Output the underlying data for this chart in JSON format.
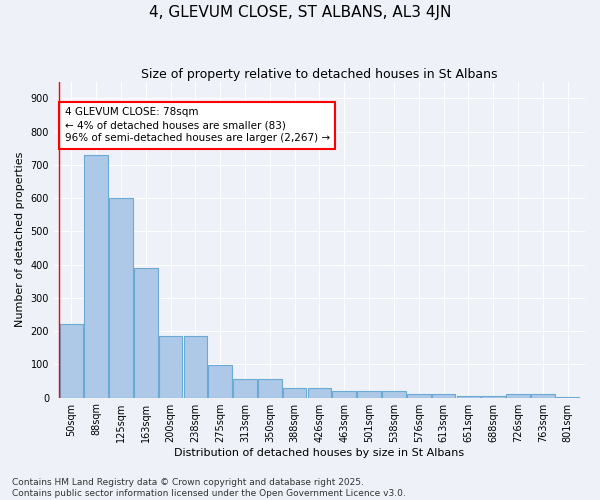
{
  "title": "4, GLEVUM CLOSE, ST ALBANS, AL3 4JN",
  "subtitle": "Size of property relative to detached houses in St Albans",
  "xlabel": "Distribution of detached houses by size in St Albans",
  "ylabel": "Number of detached properties",
  "categories": [
    "50sqm",
    "88sqm",
    "125sqm",
    "163sqm",
    "200sqm",
    "238sqm",
    "275sqm",
    "313sqm",
    "350sqm",
    "388sqm",
    "426sqm",
    "463sqm",
    "501sqm",
    "538sqm",
    "576sqm",
    "613sqm",
    "651sqm",
    "688sqm",
    "726sqm",
    "763sqm",
    "801sqm"
  ],
  "values": [
    220,
    730,
    600,
    390,
    185,
    185,
    98,
    55,
    55,
    30,
    30,
    20,
    20,
    20,
    10,
    10,
    5,
    5,
    10,
    10,
    3
  ],
  "bar_color": "#aec8e8",
  "bar_edge_color": "#6aaad4",
  "annotation_line1": "4 GLEVUM CLOSE: 78sqm",
  "annotation_line2": "← 4% of detached houses are smaller (83)",
  "annotation_line3": "96% of semi-detached houses are larger (2,267) →",
  "ylim": [
    0,
    950
  ],
  "yticks": [
    0,
    100,
    200,
    300,
    400,
    500,
    600,
    700,
    800,
    900
  ],
  "background_color": "#eef2f8",
  "grid_color": "#ffffff",
  "title_fontsize": 11,
  "subtitle_fontsize": 9,
  "axis_label_fontsize": 8,
  "tick_fontsize": 7,
  "annotation_fontsize": 7.5,
  "footer_fontsize": 6.5,
  "footer_line1": "Contains HM Land Registry data © Crown copyright and database right 2025.",
  "footer_line2": "Contains public sector information licensed under the Open Government Licence v3.0."
}
